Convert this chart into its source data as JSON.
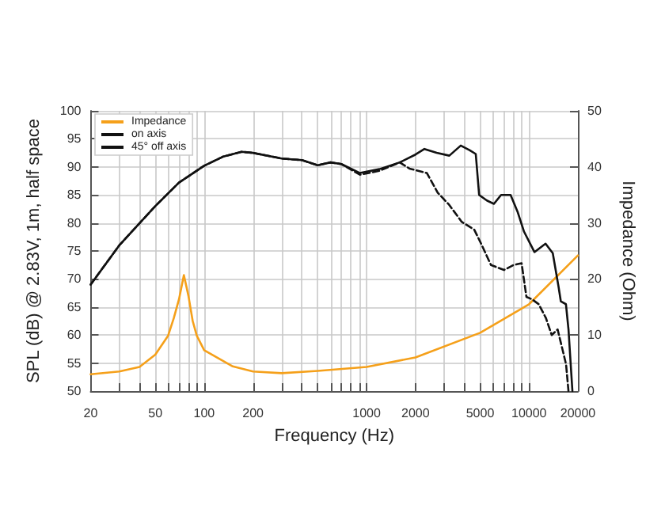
{
  "chart_data": {
    "type": "line",
    "xlabel": "Frequency (Hz)",
    "ylabel": "SPL (dB) @ 2.83V, 1m, half space",
    "y2label": "Impedance (Ohm)",
    "log": "x",
    "grid": true,
    "legend": "top left",
    "marker": "none",
    "xlim": [
      20,
      20000
    ],
    "xticks": [
      20,
      {
        "value": 30,
        "label": null
      },
      {
        "value": 40,
        "label": null
      },
      50,
      {
        "value": 60,
        "label": null
      },
      {
        "value": 70,
        "label": null
      },
      {
        "value": 80,
        "label": null
      },
      {
        "value": 90,
        "label": null
      },
      100,
      200,
      {
        "value": 300,
        "label": null
      },
      {
        "value": 400,
        "label": null
      },
      {
        "value": 500,
        "label": null
      },
      {
        "value": 600,
        "label": null
      },
      {
        "value": 700,
        "label": null
      },
      {
        "value": 800,
        "label": null
      },
      {
        "value": 900,
        "label": null
      },
      1000,
      2000,
      {
        "value": 3000,
        "label": null
      },
      {
        "value": 4000,
        "label": null
      },
      5000,
      {
        "value": 6000,
        "label": null
      },
      {
        "value": 7000,
        "label": null
      },
      {
        "value": 8000,
        "label": null
      },
      {
        "value": 9000,
        "label": null
      },
      10000,
      20000
    ],
    "ylim": [
      50,
      100
    ],
    "yticks": [
      50,
      55,
      60,
      65,
      70,
      75,
      80,
      85,
      90,
      95,
      100
    ],
    "y2lim": [
      0,
      50
    ],
    "y2ticks": [
      0,
      10,
      20,
      30,
      40,
      50
    ],
    "series": [
      {
        "name": "Impedance",
        "color": "#f5a01a",
        "axis": "y2",
        "line_style": "solid",
        "x": [
          20,
          30,
          40,
          50,
          60,
          65,
          70,
          75,
          80,
          85,
          90,
          100,
          150,
          200,
          300,
          500,
          1000,
          2000,
          5000,
          10000,
          20000
        ],
        "values": [
          3.0,
          3.5,
          4.3,
          6.5,
          9.9,
          13,
          16.4,
          20.7,
          17,
          12.5,
          9.9,
          7.3,
          4.4,
          3.5,
          3.2,
          3.6,
          4.3,
          6.0,
          10.4,
          15.5,
          24.2
        ]
      },
      {
        "name": "on axis",
        "color": "#111111",
        "line_style": "solid",
        "x": [
          20,
          30,
          50,
          70,
          100,
          130,
          170,
          200,
          300,
          400,
          500,
          600,
          700,
          910,
          1200,
          1600,
          2000,
          2270,
          2700,
          3230,
          3800,
          4300,
          4700,
          4930,
          5500,
          6080,
          6730,
          7700,
          8500,
          9300,
          10800,
          12640,
          14000,
          15200,
          15700,
          16880,
          17500,
          18500
        ],
        "values": [
          69,
          76,
          83,
          87.2,
          90.2,
          91.8,
          92.7,
          92.5,
          91.5,
          91.2,
          90.3,
          90.8,
          90.5,
          88.9,
          89.6,
          90.8,
          92.2,
          93.2,
          92.5,
          92,
          93.8,
          93,
          92.3,
          85,
          84,
          83.4,
          85,
          85,
          82,
          78.5,
          74.8,
          76.3,
          74.6,
          68.6,
          66,
          65.5,
          61,
          50
        ]
      },
      {
        "name": "45° off axis",
        "color": "#111111",
        "line_style": "dashed",
        "x": [
          20,
          30,
          50,
          70,
          100,
          130,
          170,
          200,
          300,
          400,
          500,
          600,
          700,
          910,
          1200,
          1600,
          1836,
          2350,
          2740,
          3230,
          3850,
          4600,
          5070,
          5830,
          7020,
          8050,
          9000,
          9640,
          10400,
          11480,
          12720,
          13790,
          15000,
          16900,
          17500
        ],
        "values": [
          69,
          76,
          83,
          87.2,
          90.2,
          91.8,
          92.7,
          92.5,
          91.5,
          91.2,
          90.3,
          90.8,
          90.5,
          88.6,
          89.3,
          90.8,
          89.7,
          88.9,
          85.4,
          83.2,
          80.2,
          78.8,
          76.3,
          72.5,
          71.6,
          72.5,
          72.8,
          66.8,
          66.4,
          65.5,
          63,
          60,
          61,
          54.8,
          50
        ]
      }
    ]
  }
}
